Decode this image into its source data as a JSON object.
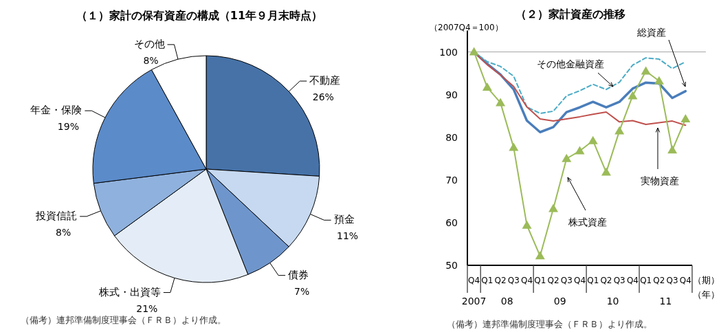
{
  "chart_data": [
    {
      "type": "pie",
      "title": "（１）家計の保有資産の構成（11年９月末時点）",
      "categories": [
        "不動産",
        "預金",
        "債券",
        "株式・出資等",
        "投資信託",
        "年金・保険",
        "その他"
      ],
      "values": [
        26,
        11,
        7,
        21,
        8,
        19,
        8
      ],
      "value_labels": [
        "26%",
        "11%",
        "7%",
        "21%",
        "8%",
        "19%",
        "8%"
      ],
      "colors": [
        "#4672a8",
        "#c6d9f1",
        "#6f96cc",
        "#e4ecf7",
        "#8fb1dd",
        "#5b8bc9",
        "#ffffff"
      ],
      "annotations": [
        "（備考）連邦準備制度理事会（ＦＲＢ）より作成。"
      ]
    },
    {
      "type": "line",
      "title": "（２）家計資産の推移",
      "ylabel": "（2007Q4＝100）",
      "xlabel": "（期）",
      "categories": [
        "Q4",
        "Q1",
        "Q2",
        "Q3",
        "Q4",
        "Q1",
        "Q2",
        "Q3",
        "Q4",
        "Q1",
        "Q2",
        "Q3",
        "Q4",
        "Q1",
        "Q2",
        "Q3",
        "Q4"
      ],
      "series": [
        {
          "name": "総資産",
          "color": "#4a7ebb",
          "marker": "none",
          "line_style": "solid",
          "values": [
            100,
            97.2,
            94.7,
            91.2,
            83.9,
            81.2,
            82.4,
            85.9,
            87.0,
            88.3,
            87.0,
            88.3,
            91.4,
            92.8,
            92.6,
            89.2,
            90.8
          ]
        },
        {
          "name": "その他金融資産",
          "color": "#4bacc6",
          "marker": "none",
          "line_style": "dashed",
          "values": [
            100,
            97.7,
            96.6,
            94.3,
            87.1,
            85.6,
            86.1,
            89.7,
            90.9,
            92.4,
            91.2,
            92.9,
            96.9,
            98.6,
            98.3,
            96.1,
            97.7
          ]
        },
        {
          "name": "実物資産",
          "color": "#c0504d",
          "marker": "none",
          "line_style": "solid",
          "values": [
            100,
            97.0,
            94.6,
            91.9,
            87.1,
            84.3,
            83.8,
            84.3,
            84.8,
            85.4,
            85.9,
            83.6,
            83.9,
            83.0,
            83.4,
            83.8,
            82.8
          ]
        },
        {
          "name": "株式資産",
          "color": "#9bbb59",
          "marker": "triangle",
          "line_style": "solid",
          "values": [
            100,
            91.7,
            88.1,
            77.6,
            59.4,
            52.2,
            63.3,
            75.0,
            76.8,
            79.2,
            71.8,
            81.5,
            89.7,
            95.5,
            93.2,
            77.0,
            84.3
          ]
        }
      ],
      "ylim": [
        50,
        105
      ],
      "yticks": [
        50,
        60,
        70,
        80,
        90,
        100
      ],
      "grid": false,
      "ref_lines": [
        {
          "axis": "y",
          "value": 100,
          "color": "#a6a6a6"
        }
      ],
      "annotations": [
        "2007",
        "08",
        "09",
        "10",
        "11",
        "（年）",
        "（備考）連邦準備制度理事会（ＦＲＢ）より作成。"
      ]
    }
  ]
}
